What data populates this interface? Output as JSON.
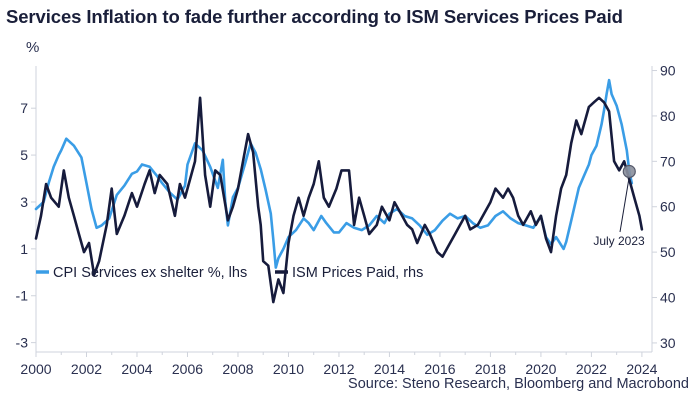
{
  "chart_data": {
    "type": "line",
    "title": "Services Inflation to fade further according to ISM Services Prices Paid",
    "left_unit": "%",
    "source": "Source: Steno Research, Bloomberg and Macrobond",
    "annotation": {
      "text": "July 2023",
      "x": 2023.5,
      "y_left": 4.3
    },
    "x_range": [
      2000,
      2024.4
    ],
    "x_ticks": [
      2000,
      2002,
      2004,
      2006,
      2008,
      2010,
      2012,
      2014,
      2016,
      2018,
      2020,
      2022,
      2024
    ],
    "left_axis": {
      "range": [
        -3.4,
        8.8
      ],
      "ticks": [
        7,
        5,
        3,
        1,
        -1,
        -3
      ]
    },
    "right_axis": {
      "range": [
        28,
        91
      ],
      "ticks": [
        90,
        80,
        70,
        60,
        50,
        40,
        30
      ]
    },
    "colors": {
      "cpi": "#3a9de6",
      "ism": "#161b3c",
      "axis": "#cfd3dc"
    },
    "series": [
      {
        "name": "CPI Services ex shelter %, lhs",
        "axis": "left",
        "points": [
          [
            2000.0,
            2.7
          ],
          [
            2000.3,
            3.0
          ],
          [
            2000.5,
            3.8
          ],
          [
            2000.7,
            4.5
          ],
          [
            2000.9,
            5.0
          ],
          [
            2001.0,
            5.2
          ],
          [
            2001.2,
            5.7
          ],
          [
            2001.5,
            5.4
          ],
          [
            2001.8,
            4.9
          ],
          [
            2002.0,
            3.8
          ],
          [
            2002.2,
            2.7
          ],
          [
            2002.4,
            1.9
          ],
          [
            2002.6,
            2.0
          ],
          [
            2002.9,
            2.3
          ],
          [
            2003.2,
            3.3
          ],
          [
            2003.5,
            3.7
          ],
          [
            2003.8,
            4.2
          ],
          [
            2004.0,
            4.3
          ],
          [
            2004.2,
            4.6
          ],
          [
            2004.5,
            4.5
          ],
          [
            2004.8,
            4.1
          ],
          [
            2005.0,
            3.8
          ],
          [
            2005.3,
            3.4
          ],
          [
            2005.6,
            3.1
          ],
          [
            2005.9,
            3.7
          ],
          [
            2006.0,
            4.6
          ],
          [
            2006.3,
            5.5
          ],
          [
            2006.6,
            5.2
          ],
          [
            2006.9,
            4.5
          ],
          [
            2007.2,
            3.6
          ],
          [
            2007.4,
            4.8
          ],
          [
            2007.5,
            3.0
          ],
          [
            2007.6,
            2.0
          ],
          [
            2007.8,
            3.2
          ],
          [
            2008.0,
            3.6
          ],
          [
            2008.3,
            4.7
          ],
          [
            2008.5,
            5.5
          ],
          [
            2008.7,
            5.1
          ],
          [
            2008.9,
            4.4
          ],
          [
            2009.1,
            3.5
          ],
          [
            2009.3,
            2.5
          ],
          [
            2009.4,
            1.4
          ],
          [
            2009.5,
            0.2
          ],
          [
            2009.6,
            0.6
          ],
          [
            2009.8,
            1.0
          ],
          [
            2010.0,
            1.5
          ],
          [
            2010.3,
            1.8
          ],
          [
            2010.6,
            2.3
          ],
          [
            2010.8,
            2.1
          ],
          [
            2011.0,
            1.8
          ],
          [
            2011.3,
            2.4
          ],
          [
            2011.5,
            2.1
          ],
          [
            2011.8,
            1.7
          ],
          [
            2012.0,
            1.7
          ],
          [
            2012.3,
            2.1
          ],
          [
            2012.6,
            1.9
          ],
          [
            2012.9,
            1.8
          ],
          [
            2013.2,
            2.0
          ],
          [
            2013.5,
            2.4
          ],
          [
            2013.8,
            2.1
          ],
          [
            2014.0,
            2.5
          ],
          [
            2014.3,
            2.7
          ],
          [
            2014.6,
            2.4
          ],
          [
            2014.9,
            2.3
          ],
          [
            2015.2,
            2.0
          ],
          [
            2015.5,
            1.6
          ],
          [
            2015.8,
            1.8
          ],
          [
            2016.1,
            2.2
          ],
          [
            2016.4,
            2.5
          ],
          [
            2016.7,
            2.3
          ],
          [
            2017.0,
            2.4
          ],
          [
            2017.3,
            2.1
          ],
          [
            2017.6,
            1.9
          ],
          [
            2017.9,
            2.0
          ],
          [
            2018.2,
            2.4
          ],
          [
            2018.5,
            2.6
          ],
          [
            2018.8,
            2.3
          ],
          [
            2019.1,
            2.1
          ],
          [
            2019.4,
            2.0
          ],
          [
            2019.7,
            1.9
          ],
          [
            2020.0,
            2.4
          ],
          [
            2020.2,
            1.5
          ],
          [
            2020.4,
            1.2
          ],
          [
            2020.6,
            1.5
          ],
          [
            2020.9,
            1.0
          ],
          [
            2021.0,
            1.3
          ],
          [
            2021.2,
            2.2
          ],
          [
            2021.5,
            3.6
          ],
          [
            2021.7,
            4.1
          ],
          [
            2021.9,
            4.6
          ],
          [
            2022.0,
            5.0
          ],
          [
            2022.2,
            5.4
          ],
          [
            2022.4,
            6.3
          ],
          [
            2022.5,
            6.9
          ],
          [
            2022.6,
            7.6
          ],
          [
            2022.7,
            8.2
          ],
          [
            2022.8,
            7.6
          ],
          [
            2023.0,
            7.1
          ],
          [
            2023.2,
            6.3
          ],
          [
            2023.4,
            5.2
          ],
          [
            2023.5,
            4.3
          ],
          [
            2023.6,
            3.8
          ]
        ]
      },
      {
        "name": "ISM Prices Paid, rhs",
        "axis": "right",
        "points": [
          [
            2000.0,
            53
          ],
          [
            2000.2,
            58
          ],
          [
            2000.4,
            65
          ],
          [
            2000.6,
            62
          ],
          [
            2000.9,
            60
          ],
          [
            2001.1,
            68
          ],
          [
            2001.3,
            62
          ],
          [
            2001.5,
            58
          ],
          [
            2001.7,
            54
          ],
          [
            2001.9,
            50
          ],
          [
            2002.1,
            52
          ],
          [
            2002.3,
            45
          ],
          [
            2002.5,
            48
          ],
          [
            2002.8,
            56
          ],
          [
            2003.0,
            64
          ],
          [
            2003.2,
            54
          ],
          [
            2003.5,
            58
          ],
          [
            2003.8,
            63
          ],
          [
            2004.0,
            60
          ],
          [
            2004.3,
            65
          ],
          [
            2004.5,
            68
          ],
          [
            2004.7,
            63
          ],
          [
            2004.9,
            67
          ],
          [
            2005.2,
            65
          ],
          [
            2005.5,
            58
          ],
          [
            2005.7,
            65
          ],
          [
            2005.9,
            62
          ],
          [
            2006.1,
            66
          ],
          [
            2006.3,
            70
          ],
          [
            2006.5,
            84
          ],
          [
            2006.7,
            67
          ],
          [
            2006.9,
            60
          ],
          [
            2007.1,
            68
          ],
          [
            2007.3,
            67
          ],
          [
            2007.6,
            57
          ],
          [
            2007.8,
            60
          ],
          [
            2008.0,
            64
          ],
          [
            2008.2,
            70
          ],
          [
            2008.4,
            76
          ],
          [
            2008.6,
            72
          ],
          [
            2008.8,
            60
          ],
          [
            2008.9,
            56
          ],
          [
            2009.0,
            48
          ],
          [
            2009.2,
            47
          ],
          [
            2009.4,
            39
          ],
          [
            2009.6,
            44
          ],
          [
            2009.8,
            41
          ],
          [
            2010.0,
            52
          ],
          [
            2010.2,
            58
          ],
          [
            2010.4,
            62
          ],
          [
            2010.6,
            58
          ],
          [
            2010.8,
            62
          ],
          [
            2011.0,
            65
          ],
          [
            2011.2,
            70
          ],
          [
            2011.4,
            62
          ],
          [
            2011.6,
            60
          ],
          [
            2011.9,
            64
          ],
          [
            2012.1,
            68
          ],
          [
            2012.4,
            68
          ],
          [
            2012.6,
            56
          ],
          [
            2012.8,
            62
          ],
          [
            2013.0,
            58
          ],
          [
            2013.2,
            54
          ],
          [
            2013.5,
            56
          ],
          [
            2013.7,
            60
          ],
          [
            2014.0,
            57
          ],
          [
            2014.2,
            61
          ],
          [
            2014.5,
            58
          ],
          [
            2014.7,
            56
          ],
          [
            2014.9,
            55
          ],
          [
            2015.1,
            52
          ],
          [
            2015.4,
            56
          ],
          [
            2015.6,
            54
          ],
          [
            2015.9,
            50
          ],
          [
            2016.1,
            49
          ],
          [
            2016.3,
            51
          ],
          [
            2016.6,
            54
          ],
          [
            2016.8,
            56
          ],
          [
            2017.0,
            58
          ],
          [
            2017.2,
            55
          ],
          [
            2017.5,
            56
          ],
          [
            2017.7,
            58
          ],
          [
            2018.0,
            61
          ],
          [
            2018.2,
            64
          ],
          [
            2018.5,
            62
          ],
          [
            2018.7,
            64
          ],
          [
            2018.9,
            62
          ],
          [
            2019.1,
            58
          ],
          [
            2019.3,
            56
          ],
          [
            2019.6,
            59
          ],
          [
            2019.8,
            56
          ],
          [
            2020.0,
            58
          ],
          [
            2020.2,
            53
          ],
          [
            2020.4,
            50
          ],
          [
            2020.6,
            58
          ],
          [
            2020.8,
            64
          ],
          [
            2021.0,
            67
          ],
          [
            2021.2,
            74
          ],
          [
            2021.4,
            79
          ],
          [
            2021.6,
            76
          ],
          [
            2021.9,
            82
          ],
          [
            2022.1,
            83
          ],
          [
            2022.3,
            84
          ],
          [
            2022.5,
            83
          ],
          [
            2022.7,
            81
          ],
          [
            2022.9,
            70
          ],
          [
            2023.1,
            68
          ],
          [
            2023.3,
            70
          ],
          [
            2023.5,
            66
          ],
          [
            2023.7,
            62
          ],
          [
            2023.9,
            58
          ],
          [
            2024.0,
            55
          ]
        ]
      }
    ]
  }
}
